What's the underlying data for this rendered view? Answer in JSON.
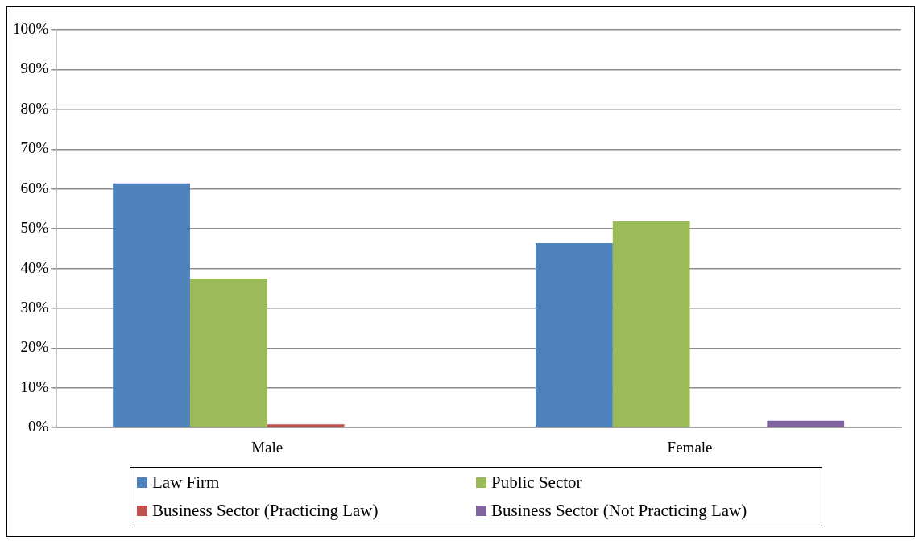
{
  "chart_data": {
    "type": "bar",
    "categories": [
      "Male",
      "Female"
    ],
    "series": [
      {
        "name": "Law Firm",
        "color": "#4f81bd",
        "values": [
          61.4,
          46.4
        ]
      },
      {
        "name": "Public Sector",
        "color": "#9bbb59",
        "values": [
          37.5,
          51.9
        ]
      },
      {
        "name": "Business Sector (Practicing Law)",
        "color": "#c0504d",
        "values": [
          0.8,
          0
        ]
      },
      {
        "name": "Business Sector (Not Practicing Law)",
        "color": "#8064a2",
        "values": [
          0,
          1.7
        ]
      }
    ],
    "ylim": [
      0,
      100
    ],
    "yticks": [
      {
        "value": 0,
        "label": "0%"
      },
      {
        "value": 10,
        "label": "10%"
      },
      {
        "value": 20,
        "label": "20%"
      },
      {
        "value": 30,
        "label": "30%"
      },
      {
        "value": 40,
        "label": "40%"
      },
      {
        "value": 50,
        "label": "50%"
      },
      {
        "value": 60,
        "label": "60%"
      },
      {
        "value": 70,
        "label": "70%"
      },
      {
        "value": 80,
        "label": "80%"
      },
      {
        "value": 90,
        "label": "90%"
      },
      {
        "value": 100,
        "label": "100%"
      }
    ],
    "grid": "y",
    "legend": "bottom"
  }
}
